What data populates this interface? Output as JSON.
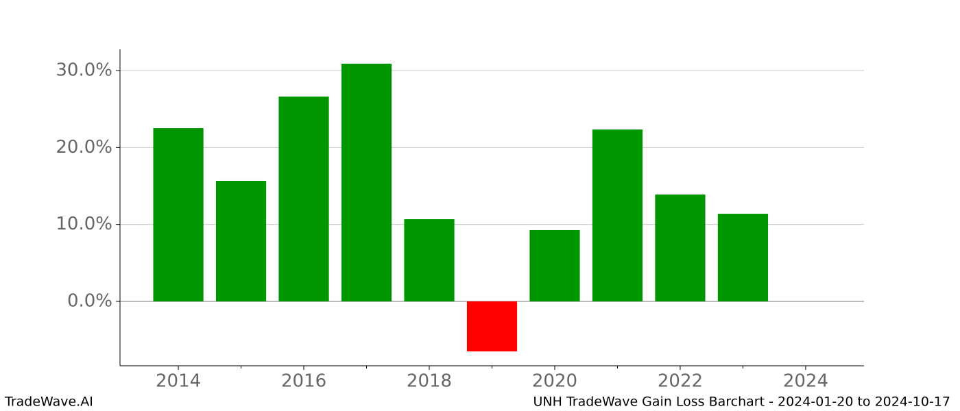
{
  "chart_data": {
    "type": "bar",
    "x": [
      2014,
      2015,
      2016,
      2017,
      2018,
      2019,
      2020,
      2021,
      2022,
      2023
    ],
    "values": [
      22.52,
      15.67,
      26.62,
      30.89,
      10.68,
      -6.5,
      9.26,
      22.34,
      13.89,
      11.39
    ],
    "positive_color": "#009600",
    "negative_color": "#ff0000",
    "xlim": [
      2013.07,
      2024.93
    ],
    "xticks": [
      2014,
      2016,
      2018,
      2020,
      2022,
      2024
    ],
    "xticks_minor": [
      2015,
      2017,
      2019,
      2021,
      2023
    ],
    "ylim": [
      -8.37,
      32.76
    ],
    "yticks": [
      {
        "value": 0,
        "label": "0.0%"
      },
      {
        "value": 10,
        "label": "10.0%"
      },
      {
        "value": 20,
        "label": "20.0%"
      },
      {
        "value": 30,
        "label": "30.0%"
      }
    ],
    "grid": true
  },
  "footer": {
    "left": "TradeWave.AI",
    "right": "UNH TradeWave Gain Loss Barchart - 2024-01-20 to 2024-10-17"
  }
}
